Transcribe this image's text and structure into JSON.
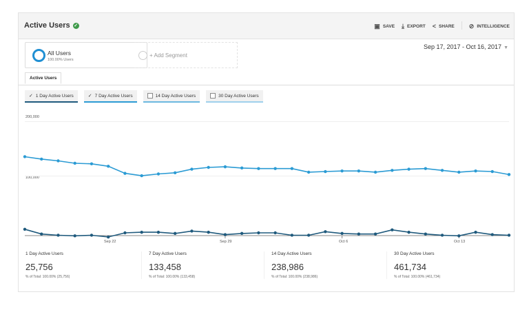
{
  "header": {
    "title": "Active Users",
    "actions": [
      "SAVE",
      "EXPORT",
      "SHARE",
      "INTELLIGENCE"
    ]
  },
  "segments": {
    "current": {
      "name": "All Users",
      "sub": "100.00% Users"
    },
    "add_label": "+ Add Segment"
  },
  "date_range": "Sep 17, 2017 - Oct 16, 2017",
  "tabs": [
    "Active Users"
  ],
  "series_chips": [
    {
      "label": "1 Day Active Users",
      "checked": true
    },
    {
      "label": "7 Day Active Users",
      "checked": true
    },
    {
      "label": "14 Day Active Users",
      "checked": false
    },
    {
      "label": "30 Day Active Users",
      "checked": false
    }
  ],
  "chart_data": {
    "type": "line",
    "y_ticks": [
      "200,000",
      "100,000"
    ],
    "x_ticks": [
      "Sep 22",
      "Sep 29",
      "Oct 6",
      "Oct 13"
    ],
    "x_tick_indices": [
      5,
      12,
      19,
      26
    ],
    "ylim": [
      0,
      220000
    ],
    "categories": [
      "Sep 17",
      "Sep 18",
      "Sep 19",
      "Sep 20",
      "Sep 21",
      "Sep 22",
      "Sep 23",
      "Sep 24",
      "Sep 25",
      "Sep 26",
      "Sep 27",
      "Sep 28",
      "Sep 29",
      "Sep 30",
      "Oct 1",
      "Oct 2",
      "Oct 3",
      "Oct 4",
      "Oct 5",
      "Oct 6",
      "Oct 7",
      "Oct 8",
      "Oct 9",
      "Oct 10",
      "Oct 11",
      "Oct 12",
      "Oct 13",
      "Oct 14",
      "Oct 15",
      "Oct 16"
    ],
    "series": [
      {
        "name": "7 Day Active Users",
        "color": "#2b9bd4",
        "values": [
          150000,
          146000,
          143000,
          139000,
          138000,
          134000,
          122000,
          118000,
          121000,
          123000,
          129000,
          132000,
          133000,
          131000,
          130000,
          130000,
          130000,
          124000,
          125000,
          126000,
          126000,
          124000,
          127000,
          129000,
          130000,
          127000,
          124000,
          126000,
          125000,
          120000
        ]
      },
      {
        "name": "1 Day Active Users",
        "color": "#1f5a7d",
        "values": [
          28000,
          20000,
          18000,
          17000,
          18000,
          15000,
          22000,
          23000,
          23000,
          21000,
          25000,
          23000,
          19000,
          21000,
          22000,
          22000,
          18000,
          18000,
          24000,
          21000,
          20000,
          20000,
          27000,
          23000,
          20000,
          18000,
          17000,
          23000,
          19000,
          18000
        ]
      }
    ]
  },
  "metrics": [
    {
      "name": "1 Day Active Users",
      "value": "25,756",
      "pct": "% of Total: 100.00% (25,756)"
    },
    {
      "name": "7 Day Active Users",
      "value": "133,458",
      "pct": "% of Total: 100.00% (133,458)"
    },
    {
      "name": "14 Day Active Users",
      "value": "238,986",
      "pct": "% of Total: 100.00% (238,986)"
    },
    {
      "name": "30 Day Active Users",
      "value": "461,734",
      "pct": "% of Total: 100.00% (461,734)"
    }
  ],
  "colors": {
    "accent": "#2b9bd4",
    "dark_series": "#1f5a7d",
    "verified": "#3f9a4a"
  },
  "icons": {
    "title_badge": "check-circle-icon",
    "save": "save-icon",
    "export": "export-icon",
    "share": "share-icon",
    "intelligence": "intelligence-icon",
    "date_caret": "caret-down-icon"
  }
}
